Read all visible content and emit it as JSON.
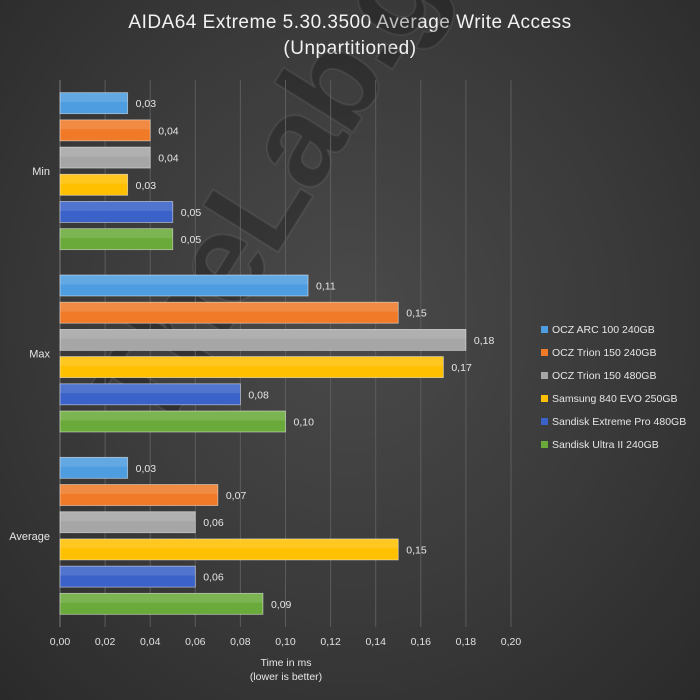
{
  "chart_data": {
    "type": "bar",
    "orientation": "horizontal",
    "title_line1": "AIDA64  Extreme  5.30.3500  Average  Write  Access",
    "title_line2": "(Unpartitioned)",
    "xlabel_line1": "Time in ms",
    "xlabel_line2": "(lower is better)",
    "categories": [
      "Min",
      "Max",
      "Average"
    ],
    "xlim": [
      0,
      0.2
    ],
    "xticks": [
      "0,00",
      "0,02",
      "0,04",
      "0,06",
      "0,08",
      "0,10",
      "0,12",
      "0,14",
      "0,16",
      "0,18",
      "0,20"
    ],
    "grid": true,
    "legend_position": "right",
    "series": [
      {
        "name": "OCZ ARC 100 240GB",
        "color": "#4d9de0",
        "values": [
          0.03,
          0.11,
          0.03
        ],
        "labels": [
          "0,03",
          "0,11",
          "0,03"
        ]
      },
      {
        "name": "OCZ Trion 150 240GB",
        "color": "#f07a28",
        "values": [
          0.04,
          0.15,
          0.07
        ],
        "labels": [
          "0,04",
          "0,15",
          "0,07"
        ]
      },
      {
        "name": "OCZ Trion 150 480GB",
        "color": "#a6a6a6",
        "values": [
          0.04,
          0.18,
          0.06
        ],
        "labels": [
          "0,04",
          "0,18",
          "0,06"
        ]
      },
      {
        "name": "Samsung 840 EVO 250GB",
        "color": "#ffc000",
        "values": [
          0.03,
          0.17,
          0.15
        ],
        "labels": [
          "0,03",
          "0,17",
          "0,15"
        ]
      },
      {
        "name": "Sandisk Extreme Pro 480GB",
        "color": "#3a62c8",
        "values": [
          0.05,
          0.08,
          0.06
        ],
        "labels": [
          "0,05",
          "0,08",
          "0,06"
        ]
      },
      {
        "name": "Sandisk Ultra II 240GB",
        "color": "#6aaa3a",
        "values": [
          0.05,
          0.1,
          0.09
        ],
        "labels": [
          "0,05",
          "0,10",
          "0,09"
        ]
      }
    ]
  },
  "watermark": "TheLab.gr"
}
